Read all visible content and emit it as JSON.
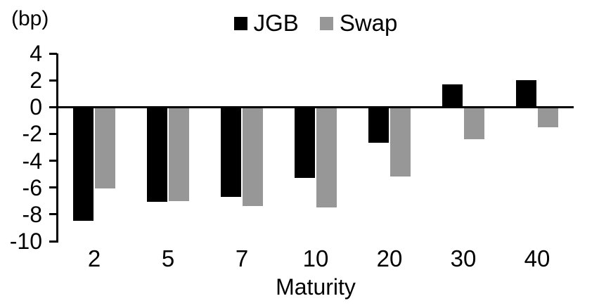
{
  "chart_data": {
    "type": "bar",
    "title": "",
    "unit_label": "(bp)",
    "xlabel": "Maturity",
    "ylabel": "",
    "categories": [
      "2",
      "5",
      "7",
      "10",
      "20",
      "30",
      "40"
    ],
    "series": [
      {
        "name": "JGB",
        "color": "#000000",
        "values": [
          -8.5,
          -7.1,
          -6.7,
          -5.3,
          -2.7,
          1.7,
          2.0
        ]
      },
      {
        "name": "Swap",
        "color": "#979797",
        "values": [
          -6.1,
          -7.0,
          -7.4,
          -7.5,
          -5.2,
          -2.4,
          -1.5
        ]
      }
    ],
    "ylim": [
      -10,
      4
    ],
    "yticks": [
      4,
      2,
      0,
      -2,
      -4,
      -6,
      -8,
      -10
    ],
    "grid": false,
    "legend_position": "top-center",
    "axis_color": "#000000",
    "background_color": "#ffffff"
  }
}
